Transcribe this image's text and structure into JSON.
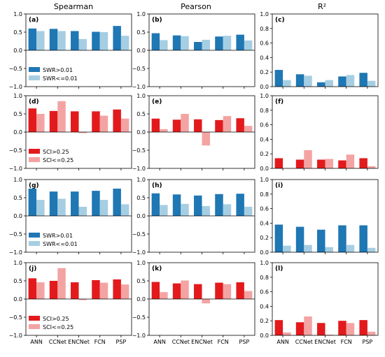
{
  "column_titles": [
    "Spearman",
    "Pearson",
    "R²"
  ],
  "categories": [
    "ANN",
    "CCNet",
    "ENCNet",
    "FCN",
    "PSP"
  ],
  "colors": {
    "blue_dark": "#1f77b4",
    "blue_light": "#a6cee3",
    "red_dark": "#e31a1c",
    "red_light": "#f4a3a3"
  },
  "chart_data": [
    {
      "type": "bar",
      "panel": "(a)",
      "row": 0,
      "col": 0,
      "ylim": [
        -1.0,
        1.0
      ],
      "yticks": [
        -1.0,
        -0.5,
        0.0,
        0.5,
        1.0
      ],
      "palette": "blue",
      "legend": true,
      "series": [
        {
          "name": "SWR>0.01",
          "values": [
            0.6,
            0.59,
            0.53,
            0.51,
            0.67
          ]
        },
        {
          "name": "SWR<=0.01",
          "values": [
            0.53,
            0.53,
            0.31,
            0.5,
            0.4
          ]
        }
      ]
    },
    {
      "type": "bar",
      "panel": "(b)",
      "row": 0,
      "col": 1,
      "ylim": [
        -1.0,
        1.0
      ],
      "yticks": [
        -1.0,
        -0.5,
        0.0,
        0.5,
        1.0
      ],
      "palette": "blue",
      "legend": false,
      "series": [
        {
          "name": "SWR>0.01",
          "values": [
            0.47,
            0.41,
            0.23,
            0.38,
            0.43
          ]
        },
        {
          "name": "SWR<=0.01",
          "values": [
            0.28,
            0.39,
            0.29,
            0.4,
            0.27
          ]
        }
      ]
    },
    {
      "type": "bar",
      "panel": "(c)",
      "row": 0,
      "col": 2,
      "ylim": [
        0.0,
        1.0
      ],
      "yticks": [
        0.0,
        0.2,
        0.4,
        0.6,
        0.8,
        1.0
      ],
      "palette": "blue",
      "legend": false,
      "series": [
        {
          "name": "SWR>0.01",
          "values": [
            0.23,
            0.17,
            0.06,
            0.14,
            0.19
          ]
        },
        {
          "name": "SWR<=0.01",
          "values": [
            0.09,
            0.15,
            0.09,
            0.16,
            0.08
          ]
        }
      ]
    },
    {
      "type": "bar",
      "panel": "(d)",
      "row": 1,
      "col": 0,
      "ylim": [
        -1.0,
        1.0
      ],
      "yticks": [
        -1.0,
        -0.5,
        0.0,
        0.5,
        1.0
      ],
      "palette": "red",
      "legend": true,
      "series": [
        {
          "name": "SCI>0.25",
          "values": [
            0.65,
            0.58,
            0.57,
            0.57,
            0.62
          ]
        },
        {
          "name": "SCI<=0.25",
          "values": [
            0.5,
            0.85,
            -0.03,
            0.45,
            0.37
          ]
        }
      ]
    },
    {
      "type": "bar",
      "panel": "(e)",
      "row": 1,
      "col": 1,
      "ylim": [
        -1.0,
        1.0
      ],
      "yticks": [
        -1.0,
        -0.5,
        0.0,
        0.5,
        1.0
      ],
      "palette": "red",
      "legend": false,
      "series": [
        {
          "name": "SCI>0.25",
          "values": [
            0.37,
            0.34,
            0.35,
            0.33,
            0.38
          ]
        },
        {
          "name": "SCI<=0.25",
          "values": [
            0.08,
            0.5,
            -0.37,
            0.44,
            0.17
          ]
        }
      ]
    },
    {
      "type": "bar",
      "panel": "(f)",
      "row": 1,
      "col": 2,
      "ylim": [
        0.0,
        1.0
      ],
      "yticks": [
        0.0,
        0.2,
        0.4,
        0.6,
        0.8,
        1.0
      ],
      "palette": "red",
      "legend": false,
      "series": [
        {
          "name": "SCI>0.25",
          "values": [
            0.14,
            0.12,
            0.12,
            0.11,
            0.14
          ]
        },
        {
          "name": "SCI<=0.25",
          "values": [
            0.0,
            0.25,
            0.13,
            0.19,
            0.03
          ]
        }
      ]
    },
    {
      "type": "bar",
      "panel": "(g)",
      "row": 2,
      "col": 0,
      "ylim": [
        -1.0,
        1.0
      ],
      "yticks": [
        -1.0,
        -0.5,
        0.0,
        0.5,
        1.0
      ],
      "palette": "blue",
      "legend": true,
      "series": [
        {
          "name": "SWR>0.01",
          "values": [
            0.75,
            0.67,
            0.67,
            0.69,
            0.75
          ]
        },
        {
          "name": "SWR<=0.01",
          "values": [
            0.44,
            0.47,
            0.25,
            0.44,
            0.32
          ]
        }
      ]
    },
    {
      "type": "bar",
      "panel": "(h)",
      "row": 2,
      "col": 1,
      "ylim": [
        -1.0,
        1.0
      ],
      "yticks": [
        -1.0,
        -0.5,
        0.0,
        0.5,
        1.0
      ],
      "palette": "blue",
      "legend": false,
      "series": [
        {
          "name": "SWR>0.01",
          "values": [
            0.62,
            0.59,
            0.56,
            0.6,
            0.61
          ]
        },
        {
          "name": "SWR<=0.01",
          "values": [
            0.3,
            0.33,
            0.27,
            0.32,
            0.25
          ]
        }
      ]
    },
    {
      "type": "bar",
      "panel": "(i)",
      "row": 2,
      "col": 2,
      "ylim": [
        0.0,
        1.0
      ],
      "yticks": [
        0.0,
        0.2,
        0.4,
        0.6,
        0.8,
        1.0
      ],
      "palette": "blue",
      "legend": false,
      "series": [
        {
          "name": "SWR>0.01",
          "values": [
            0.38,
            0.35,
            0.31,
            0.37,
            0.37
          ]
        },
        {
          "name": "SWR<=0.01",
          "values": [
            0.09,
            0.1,
            0.07,
            0.1,
            0.06
          ]
        }
      ]
    },
    {
      "type": "bar",
      "panel": "(j)",
      "row": 3,
      "col": 0,
      "ylim": [
        -1.0,
        1.0
      ],
      "yticks": [
        -1.0,
        -0.5,
        0.0,
        0.5,
        1.0
      ],
      "palette": "red",
      "legend": true,
      "series": [
        {
          "name": "SCI>0.25",
          "values": [
            0.57,
            0.5,
            0.46,
            0.52,
            0.54
          ]
        },
        {
          "name": "SCI<=0.25",
          "values": [
            0.46,
            0.85,
            -0.03,
            0.45,
            0.4
          ]
        }
      ]
    },
    {
      "type": "bar",
      "panel": "(k)",
      "row": 3,
      "col": 1,
      "ylim": [
        -1.0,
        1.0
      ],
      "yticks": [
        -1.0,
        -0.5,
        0.0,
        0.5,
        1.0
      ],
      "palette": "red",
      "legend": false,
      "series": [
        {
          "name": "SCI>0.25",
          "values": [
            0.47,
            0.43,
            0.41,
            0.45,
            0.46
          ]
        },
        {
          "name": "SCI<=0.25",
          "values": [
            0.19,
            0.51,
            -0.12,
            0.41,
            0.22
          ]
        }
      ]
    },
    {
      "type": "bar",
      "panel": "(l)",
      "row": 3,
      "col": 2,
      "ylim": [
        0.0,
        1.0
      ],
      "yticks": [
        0.0,
        0.2,
        0.4,
        0.6,
        0.8,
        1.0
      ],
      "palette": "red",
      "legend": false,
      "series": [
        {
          "name": "SCI>0.25",
          "values": [
            0.21,
            0.18,
            0.17,
            0.2,
            0.21
          ]
        },
        {
          "name": "SCI<=0.25",
          "values": [
            0.04,
            0.26,
            0.01,
            0.17,
            0.05
          ]
        }
      ]
    }
  ]
}
